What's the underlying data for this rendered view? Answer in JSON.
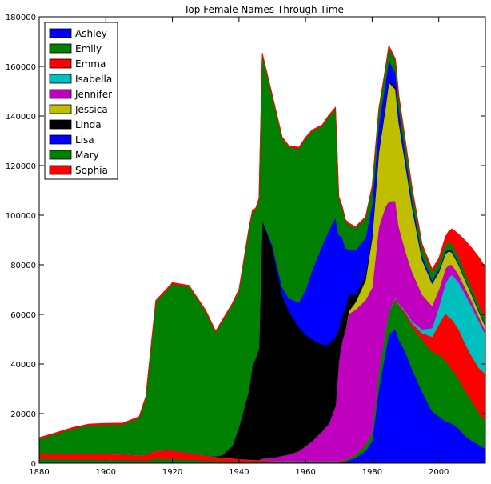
{
  "chart_data": {
    "type": "area",
    "title": "Top Female Names Through Time",
    "xlabel": "",
    "ylabel": "",
    "xlim": [
      1880,
      2014
    ],
    "ylim": [
      0,
      180000
    ],
    "xticks": [
      1880,
      1900,
      1920,
      1940,
      1960,
      1980,
      2000
    ],
    "yticks": [
      0,
      20000,
      40000,
      60000,
      80000,
      100000,
      120000,
      140000,
      160000,
      180000
    ],
    "grid": false,
    "legend_position": "top-left",
    "x": [
      1880,
      1885,
      1890,
      1895,
      1900,
      1905,
      1910,
      1912,
      1915,
      1920,
      1925,
      1930,
      1933,
      1935,
      1938,
      1940,
      1943,
      1944,
      1945,
      1946,
      1947,
      1950,
      1953,
      1955,
      1958,
      1960,
      1962,
      1965,
      1967,
      1969,
      1970,
      1971,
      1972,
      1973,
      1975,
      1978,
      1980,
      1982,
      1984,
      1985,
      1987,
      1988,
      1990,
      1992,
      1995,
      1998,
      2000,
      2002,
      2003,
      2004,
      2006,
      2008,
      2010,
      2012,
      2014
    ],
    "series": [
      {
        "name": "Ashley",
        "color": "#0000ff",
        "values": [
          0,
          0,
          0,
          0,
          0,
          0,
          0,
          0,
          0,
          0,
          0,
          0,
          0,
          0,
          0,
          0,
          0,
          0,
          0,
          0,
          0,
          0,
          0,
          0,
          0,
          0,
          0,
          0,
          0,
          100,
          200,
          400,
          800,
          1200,
          2200,
          5000,
          9000,
          30000,
          45000,
          52000,
          54000,
          50000,
          45000,
          38000,
          29000,
          21000,
          19000,
          17000,
          16500,
          16000,
          14000,
          11000,
          9000,
          7500,
          6000
        ]
      },
      {
        "name": "Emily",
        "color": "#008000",
        "values": [
          1900,
          1700,
          1600,
          1500,
          1400,
          1350,
          1200,
          1100,
          1800,
          1700,
          1400,
          1100,
          1000,
          900,
          800,
          700,
          600,
          600,
          600,
          600,
          600,
          500,
          500,
          500,
          500,
          500,
          500,
          500,
          500,
          500,
          500,
          500,
          500,
          700,
          1300,
          2400,
          3500,
          7000,
          8000,
          9000,
          12000,
          13500,
          15000,
          17000,
          21000,
          24000,
          25000,
          24500,
          23000,
          22000,
          20000,
          18000,
          16000,
          13000,
          11000
        ]
      },
      {
        "name": "Emma",
        "color": "#ff0000",
        "values": [
          2000,
          2000,
          2200,
          2200,
          2300,
          2200,
          2000,
          2200,
          3200,
          3500,
          2700,
          2000,
          1500,
          1300,
          1100,
          900,
          800,
          700,
          650,
          600,
          600,
          500,
          400,
          400,
          300,
          300,
          300,
          300,
          300,
          300,
          300,
          300,
          300,
          300,
          300,
          300,
          300,
          300,
          300,
          400,
          500,
          600,
          1000,
          1500,
          2500,
          6000,
          12000,
          19000,
          19500,
          20000,
          20000,
          19000,
          18000,
          18000,
          19000
        ]
      },
      {
        "name": "Isabella",
        "color": "#00bfbf",
        "values": [
          100,
          100,
          100,
          100,
          100,
          100,
          100,
          100,
          100,
          100,
          100,
          100,
          100,
          100,
          100,
          100,
          100,
          100,
          100,
          100,
          100,
          100,
          100,
          100,
          100,
          100,
          100,
          100,
          100,
          100,
          100,
          100,
          100,
          100,
          100,
          100,
          100,
          100,
          200,
          200,
          300,
          400,
          600,
          800,
          1500,
          3500,
          7000,
          12000,
          16000,
          18000,
          19000,
          20000,
          20000,
          19000,
          16000
        ]
      },
      {
        "name": "Jennifer",
        "color": "#bf00bf",
        "values": [
          0,
          0,
          0,
          0,
          0,
          0,
          0,
          0,
          0,
          0,
          0,
          0,
          0,
          0,
          0,
          0,
          0,
          0,
          0,
          0,
          600,
          1000,
          2000,
          2500,
          4000,
          6000,
          8000,
          12000,
          15000,
          22000,
          40000,
          48000,
          52000,
          58000,
          58000,
          58000,
          58000,
          58000,
          50000,
          44000,
          39000,
          31000,
          24000,
          20000,
          14000,
          9000,
          7000,
          6000,
          5000,
          4000,
          3000,
          2600,
          2100,
          1700,
          1500
        ]
      },
      {
        "name": "Jessica",
        "color": "#bfbf00",
        "values": [
          0,
          0,
          0,
          0,
          0,
          0,
          0,
          0,
          0,
          0,
          0,
          0,
          0,
          0,
          0,
          0,
          0,
          0,
          0,
          0,
          0,
          0,
          0,
          0,
          0,
          0,
          0,
          0,
          0,
          0,
          0,
          0,
          0,
          1000,
          3000,
          8000,
          20000,
          30000,
          40000,
          48000,
          45000,
          42000,
          35000,
          26000,
          14000,
          9000,
          7000,
          6000,
          5500,
          5000,
          4000,
          3000,
          2500,
          2000,
          1700
        ]
      },
      {
        "name": "Linda",
        "color": "#000000",
        "values": [
          0,
          0,
          0,
          0,
          0,
          0,
          0,
          0,
          0,
          0,
          0,
          0,
          200,
          1000,
          5000,
          13000,
          28000,
          38000,
          41000,
          45000,
          96000,
          85000,
          65000,
          58000,
          50000,
          45000,
          41000,
          35000,
          32000,
          28000,
          13000,
          10000,
          9000,
          7000,
          3000,
          2000,
          1500,
          1200,
          1000,
          900,
          700,
          600,
          500,
          400,
          300,
          300,
          300,
          300,
          300,
          300,
          300,
          300,
          300,
          300,
          300
        ]
      },
      {
        "name": "Lisa",
        "color": "#0000ff",
        "values": [
          0,
          0,
          0,
          0,
          0,
          0,
          0,
          0,
          0,
          0,
          0,
          0,
          0,
          0,
          0,
          0,
          0,
          0,
          0,
          0,
          0,
          1000,
          3000,
          5000,
          10000,
          18000,
          28000,
          40000,
          46000,
          48000,
          38000,
          32000,
          24000,
          18000,
          18000,
          15000,
          12000,
          10000,
          9000,
          8000,
          6000,
          5000,
          3500,
          2500,
          1500,
          1000,
          800,
          600,
          500,
          500,
          400,
          300,
          300,
          300,
          300
        ]
      },
      {
        "name": "Mary",
        "color": "#008000",
        "values": [
          5800,
          8000,
          10000,
          11500,
          11800,
          12000,
          15000,
          23000,
          60000,
          67000,
          67000,
          58000,
          50000,
          54000,
          57000,
          55000,
          65000,
          62000,
          60000,
          60000,
          67000,
          60000,
          60000,
          61000,
          62000,
          61000,
          56000,
          48000,
          46000,
          44000,
          15000,
          12000,
          11000,
          10000,
          9000,
          8000,
          7000,
          6000,
          5500,
          5500,
          5000,
          5000,
          5000,
          4500,
          4000,
          3500,
          3000,
          2900,
          2800,
          2700,
          2600,
          2500,
          2400,
          2300,
          2200
        ]
      },
      {
        "name": "Sophia",
        "color": "#ff0000",
        "values": [
          500,
          500,
          500,
          500,
          500,
          500,
          500,
          500,
          500,
          500,
          500,
          500,
          500,
          500,
          500,
          500,
          500,
          500,
          500,
          500,
          500,
          500,
          500,
          500,
          500,
          500,
          500,
          500,
          500,
          500,
          500,
          500,
          500,
          500,
          500,
          500,
          500,
          500,
          500,
          500,
          500,
          500,
          500,
          500,
          600,
          1000,
          1500,
          3000,
          4500,
          6000,
          9000,
          13000,
          16000,
          19000,
          21000
        ]
      }
    ]
  }
}
